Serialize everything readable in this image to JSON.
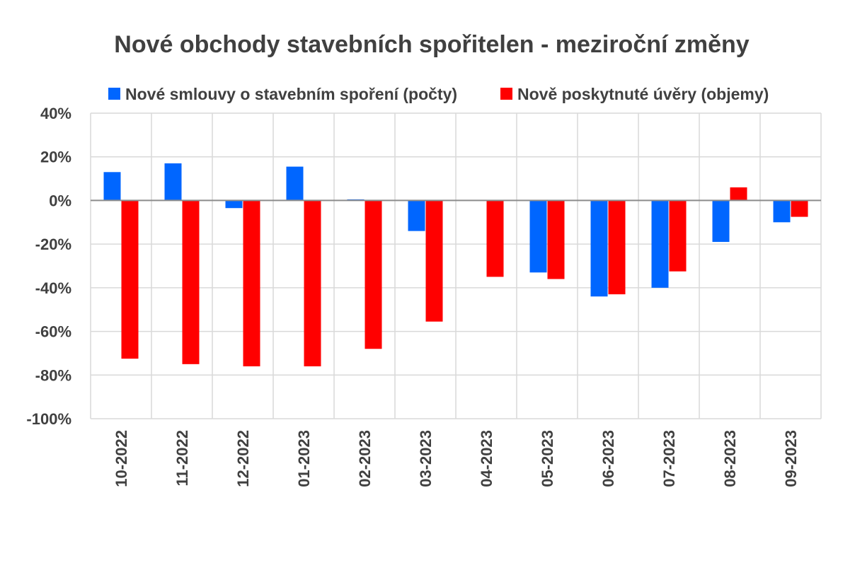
{
  "chart_data": {
    "type": "bar",
    "title": "Nové obchody stavebních spořitelen - meziroční změny",
    "xlabel": "",
    "ylabel": "",
    "ylim": [
      -100,
      40
    ],
    "y_ticks": [
      "40%",
      "20%",
      "0%",
      "-20%",
      "-40%",
      "-60%",
      "-80%",
      "-100%"
    ],
    "y_tick_values": [
      40,
      20,
      0,
      -20,
      -40,
      -60,
      -80,
      -100
    ],
    "categories": [
      "10-2022",
      "11-2022",
      "12-2022",
      "01-2023",
      "02-2023",
      "03-2023",
      "04-2023",
      "05-2023",
      "06-2023",
      "07-2023",
      "08-2023",
      "09-2023"
    ],
    "series": [
      {
        "name": "Nové smlouvy o stavebním spoření (počty)",
        "color": "#0066ff",
        "values": [
          13,
          17,
          -3.5,
          15.5,
          0.5,
          -14,
          0,
          -33,
          -44,
          -40,
          -19,
          -10
        ]
      },
      {
        "name": "Nově poskytnuté úvěry (objemy)",
        "color": "#ff0000",
        "values": [
          -72.5,
          -75,
          -76,
          -76,
          -68,
          -55.5,
          -35,
          -36,
          -43,
          -32.5,
          6,
          -7.5
        ]
      }
    ],
    "grid": true,
    "legend": "top"
  }
}
